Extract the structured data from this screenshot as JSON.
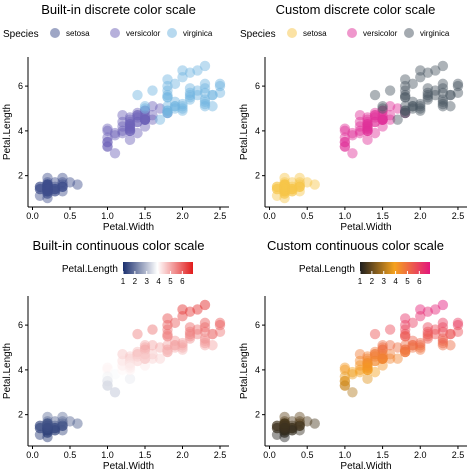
{
  "iris": {
    "setosa": {
      "petal_width": [
        0.2,
        0.2,
        0.2,
        0.2,
        0.2,
        0.4,
        0.3,
        0.2,
        0.2,
        0.1,
        0.2,
        0.2,
        0.1,
        0.1,
        0.2,
        0.4,
        0.4,
        0.3,
        0.3,
        0.3,
        0.2,
        0.4,
        0.2,
        0.5,
        0.2,
        0.2,
        0.4,
        0.2,
        0.2,
        0.2,
        0.2,
        0.4,
        0.1,
        0.2,
        0.2,
        0.2,
        0.2,
        0.1,
        0.2,
        0.2,
        0.3,
        0.3,
        0.2,
        0.6,
        0.4,
        0.3,
        0.2,
        0.2,
        0.2,
        0.2
      ],
      "petal_length": [
        1.4,
        1.4,
        1.3,
        1.5,
        1.4,
        1.7,
        1.4,
        1.5,
        1.4,
        1.5,
        1.5,
        1.6,
        1.4,
        1.1,
        1.2,
        1.5,
        1.3,
        1.4,
        1.7,
        1.5,
        1.7,
        1.5,
        1.0,
        1.7,
        1.9,
        1.6,
        1.6,
        1.5,
        1.4,
        1.6,
        1.6,
        1.5,
        1.5,
        1.4,
        1.5,
        1.2,
        1.3,
        1.4,
        1.3,
        1.5,
        1.3,
        1.3,
        1.3,
        1.6,
        1.9,
        1.4,
        1.6,
        1.4,
        1.5,
        1.4
      ]
    },
    "versicolor": {
      "petal_width": [
        1.4,
        1.5,
        1.5,
        1.3,
        1.5,
        1.3,
        1.6,
        1.0,
        1.3,
        1.4,
        1.0,
        1.5,
        1.0,
        1.4,
        1.3,
        1.4,
        1.5,
        1.0,
        1.5,
        1.1,
        1.8,
        1.3,
        1.5,
        1.2,
        1.3,
        1.4,
        1.4,
        1.7,
        1.5,
        1.0,
        1.1,
        1.0,
        1.2,
        1.6,
        1.5,
        1.6,
        1.5,
        1.3,
        1.3,
        1.3,
        1.2,
        1.4,
        1.2,
        1.0,
        1.3,
        1.2,
        1.3,
        1.3,
        1.1,
        1.3
      ],
      "petal_length": [
        4.7,
        4.5,
        4.9,
        4.0,
        4.6,
        4.5,
        4.7,
        3.3,
        4.6,
        3.9,
        3.5,
        4.2,
        4.0,
        4.7,
        3.6,
        4.4,
        4.5,
        4.1,
        4.5,
        3.9,
        4.8,
        4.0,
        4.9,
        4.7,
        4.3,
        4.4,
        4.8,
        5.0,
        4.5,
        3.5,
        3.8,
        3.7,
        3.9,
        5.1,
        4.5,
        4.5,
        4.7,
        4.4,
        4.1,
        4.0,
        4.4,
        4.6,
        4.0,
        3.3,
        4.2,
        4.2,
        4.2,
        4.3,
        3.0,
        4.1
      ]
    },
    "virginica": {
      "petal_width": [
        2.5,
        1.9,
        2.1,
        1.8,
        2.2,
        2.1,
        1.7,
        1.8,
        1.8,
        2.5,
        2.0,
        1.9,
        2.1,
        2.0,
        2.4,
        2.3,
        1.8,
        2.2,
        2.3,
        1.5,
        2.3,
        2.0,
        2.0,
        1.8,
        2.1,
        1.8,
        1.8,
        1.8,
        2.1,
        1.6,
        1.9,
        2.0,
        2.2,
        1.5,
        1.4,
        2.3,
        2.4,
        1.8,
        1.8,
        2.1,
        2.4,
        2.3,
        1.9,
        2.3,
        2.5,
        2.3,
        1.9,
        2.0,
        2.3,
        1.8
      ],
      "petal_length": [
        6.0,
        5.1,
        5.9,
        5.6,
        5.8,
        6.6,
        4.5,
        6.3,
        5.8,
        6.1,
        5.1,
        5.3,
        5.5,
        5.0,
        5.1,
        5.3,
        5.5,
        6.7,
        6.9,
        5.0,
        5.7,
        4.9,
        6.7,
        4.9,
        5.7,
        6.0,
        4.8,
        4.9,
        5.6,
        5.8,
        6.1,
        6.4,
        5.6,
        5.1,
        5.6,
        6.1,
        5.6,
        5.5,
        4.8,
        5.4,
        5.6,
        5.1,
        5.1,
        5.9,
        5.7,
        5.2,
        5.0,
        5.2,
        5.4,
        5.1
      ]
    }
  },
  "chart_data": [
    {
      "type": "scatter",
      "title": "Built-in discrete color scale",
      "xlabel": "Petal.Width",
      "ylabel": "Petal.Length",
      "xlim": [
        -0.06,
        2.62
      ],
      "ylim": [
        0.6,
        7.3
      ],
      "xticks": [
        "0.0",
        "0.5",
        "1.0",
        "1.5",
        "2.0",
        "2.5"
      ],
      "xtick_values": [
        0,
        0.5,
        1,
        1.5,
        2,
        2.5
      ],
      "yticks": [
        "2",
        "4",
        "6"
      ],
      "ytick_values": [
        2,
        4,
        6
      ],
      "color_mode": "discrete",
      "legend": {
        "title": "Species",
        "position": "top",
        "entries": [
          "setosa",
          "versicolor",
          "virginica"
        ],
        "colors": [
          "#3d4e8c",
          "#6d62b8",
          "#6fb3df"
        ]
      },
      "series": [
        {
          "name": "setosa",
          "ref": "setosa",
          "color": "#3d4e8c"
        },
        {
          "name": "versicolor",
          "ref": "versicolor",
          "color": "#6d62b8"
        },
        {
          "name": "virginica",
          "ref": "virginica",
          "color": "#6fb3df"
        }
      ]
    },
    {
      "type": "scatter",
      "title": "Custom discrete color scale",
      "xlabel": "Petal.Width",
      "ylabel": "Petal.Length",
      "xlim": [
        -0.06,
        2.62
      ],
      "ylim": [
        0.6,
        7.3
      ],
      "xticks": [
        "0.0",
        "0.5",
        "1.0",
        "1.5",
        "2.0",
        "2.5"
      ],
      "xtick_values": [
        0,
        0.5,
        1,
        1.5,
        2,
        2.5
      ],
      "yticks": [
        "2",
        "4",
        "6"
      ],
      "ytick_values": [
        2,
        4,
        6
      ],
      "color_mode": "discrete",
      "legend": {
        "title": "Species",
        "position": "top",
        "entries": [
          "setosa",
          "versicolor",
          "virginica"
        ],
        "colors": [
          "#f7c64a",
          "#e0309a",
          "#4a5662"
        ]
      },
      "series": [
        {
          "name": "setosa",
          "ref": "setosa",
          "color": "#f7c64a"
        },
        {
          "name": "versicolor",
          "ref": "versicolor",
          "color": "#e0309a"
        },
        {
          "name": "virginica",
          "ref": "virginica",
          "color": "#4a5662"
        }
      ]
    },
    {
      "type": "scatter",
      "title": "Built-in continuous color scale",
      "xlabel": "Petal.Width",
      "ylabel": "Petal.Length",
      "xlim": [
        -0.06,
        2.62
      ],
      "ylim": [
        0.6,
        7.3
      ],
      "xticks": [
        "0.0",
        "0.5",
        "1.0",
        "1.5",
        "2.0",
        "2.5"
      ],
      "xtick_values": [
        0,
        0.5,
        1,
        1.5,
        2,
        2.5
      ],
      "yticks": [
        "2",
        "4",
        "6"
      ],
      "ytick_values": [
        2,
        4,
        6
      ],
      "color_mode": "continuous",
      "legend": {
        "title": "Petal.Length",
        "position": "top",
        "ticks": [
          "1",
          "2",
          "3",
          "4",
          "5",
          "6"
        ],
        "tick_values": [
          1,
          2,
          3,
          4,
          5,
          6
        ],
        "range": [
          1.0,
          6.9
        ],
        "stops": [
          {
            "v": 1.0,
            "color": "#1a2f6e"
          },
          {
            "v": 3.9,
            "color": "#ffffff"
          },
          {
            "v": 6.9,
            "color": "#e11b1b"
          }
        ]
      },
      "series": [
        {
          "ref": "setosa"
        },
        {
          "ref": "versicolor"
        },
        {
          "ref": "virginica"
        }
      ]
    },
    {
      "type": "scatter",
      "title": "Custom continuous color scale",
      "xlabel": "Petal.Width",
      "ylabel": "Petal.Length",
      "xlim": [
        -0.06,
        2.62
      ],
      "ylim": [
        0.6,
        7.3
      ],
      "xticks": [
        "0.0",
        "0.5",
        "1.0",
        "1.5",
        "2.0",
        "2.5"
      ],
      "xtick_values": [
        0,
        0.5,
        1,
        1.5,
        2,
        2.5
      ],
      "yticks": [
        "2",
        "4",
        "6"
      ],
      "ytick_values": [
        2,
        4,
        6
      ],
      "color_mode": "continuous",
      "legend": {
        "title": "Petal.Length",
        "position": "top",
        "ticks": [
          "1",
          "2",
          "3",
          "4",
          "5",
          "6"
        ],
        "tick_values": [
          1,
          2,
          3,
          4,
          5,
          6
        ],
        "range": [
          1.0,
          6.9
        ],
        "stops": [
          {
            "v": 1.0,
            "color": "#1e1e1e"
          },
          {
            "v": 3.9,
            "color": "#f5a21e"
          },
          {
            "v": 6.9,
            "color": "#e3157b"
          }
        ]
      },
      "series": [
        {
          "ref": "setosa"
        },
        {
          "ref": "versicolor"
        },
        {
          "ref": "virginica"
        }
      ]
    }
  ]
}
